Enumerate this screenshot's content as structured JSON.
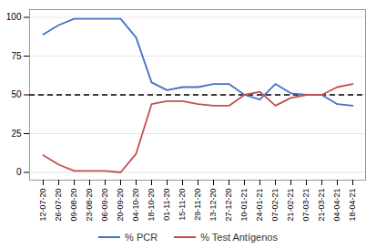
{
  "chart_data": {
    "type": "line",
    "categories": [
      "12-07-20",
      "26-07-20",
      "09-08-20",
      "23-08-20",
      "06-09-20",
      "20-09-20",
      "04-10-20",
      "18-10-20",
      "01-11-20",
      "15-11-20",
      "29-11-20",
      "13-12-20",
      "27-12-20",
      "10-01-21",
      "24-01-21",
      "07-02-21",
      "21-02-21",
      "07-03-21",
      "21-03-21",
      "04-04-21",
      "18-04-21"
    ],
    "series": [
      {
        "name": "% PCR",
        "color": "#4472C4",
        "values": [
          89,
          95,
          99,
          99,
          99,
          99,
          87,
          58,
          53,
          55,
          55,
          57,
          57,
          50,
          47,
          57,
          51,
          50,
          50,
          44,
          43
        ]
      },
      {
        "name": "% Test Antígenos",
        "color": "#C0504D",
        "values": [
          11,
          5,
          1,
          1,
          1,
          0,
          12,
          44,
          46,
          46,
          44,
          43,
          43,
          50,
          52,
          43,
          48,
          50,
          50,
          55,
          57
        ]
      }
    ],
    "reference_lines": [
      {
        "y": 50,
        "color": "black",
        "line_style": "dashed"
      }
    ],
    "ylim": [
      -5,
      105
    ],
    "yticks": [
      0,
      25,
      50,
      75,
      100
    ],
    "grid": true,
    "legend": "bottom"
  }
}
